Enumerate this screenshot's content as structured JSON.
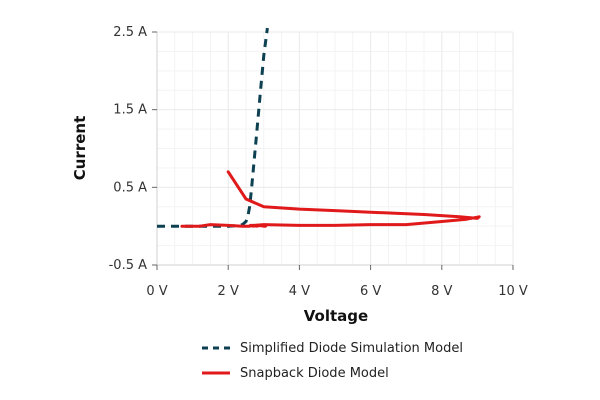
{
  "chart_data": {
    "type": "line",
    "xlabel": "Voltage",
    "ylabel": "Current",
    "xlim": [
      0,
      10
    ],
    "ylim": [
      -0.5,
      2.5
    ],
    "x_ticks": [
      0,
      2,
      4,
      6,
      8,
      10
    ],
    "x_tick_labels": [
      "0 V",
      "2 V",
      "4 V",
      "6 V",
      "8 V",
      "10 V"
    ],
    "y_ticks": [
      -0.5,
      0.5,
      1.5,
      2.5
    ],
    "y_tick_labels": [
      "-0.5 A",
      "0.5 A",
      "1.5 A",
      "2.5 A"
    ],
    "grid": true,
    "legend_position": "bottom",
    "series": [
      {
        "name": "Simplified Diode Simulation Model",
        "style": "dashed",
        "color": "#0d4152",
        "x": [
          0.0,
          0.5,
          1.0,
          1.5,
          2.0,
          2.3,
          2.4,
          2.5,
          2.55,
          2.6,
          2.65,
          2.7,
          2.8,
          2.9,
          3.0,
          3.1
        ],
        "y": [
          0.0,
          0.0,
          0.0,
          0.0,
          0.0,
          0.01,
          0.02,
          0.06,
          0.12,
          0.25,
          0.45,
          0.7,
          1.2,
          1.7,
          2.2,
          2.55
        ]
      },
      {
        "name": "Snapback Diode Model",
        "style": "solid",
        "color": "#e0191b",
        "x": [
          0.7,
          1.2,
          1.5,
          2.0,
          2.4,
          2.6,
          2.7,
          2.8,
          2.9,
          3.0,
          3.05,
          3.0,
          2.85,
          2.7,
          2.62,
          2.7,
          3.0,
          4.0,
          5.0,
          6.0,
          7.0,
          8.0,
          8.7,
          9.05,
          9.0,
          8.5,
          7.5,
          6.0,
          5.0,
          4.0,
          3.0,
          2.5,
          2.0
        ],
        "y": [
          0.0,
          0.0,
          0.02,
          0.01,
          0.0,
          0.0,
          0.01,
          0.0,
          0.01,
          0.01,
          0.0,
          0.0,
          0.01,
          0.0,
          0.01,
          0.01,
          0.02,
          0.01,
          0.01,
          0.02,
          0.02,
          0.06,
          0.09,
          0.12,
          0.1,
          0.12,
          0.15,
          0.18,
          0.2,
          0.22,
          0.25,
          0.35,
          0.7
        ]
      }
    ]
  }
}
